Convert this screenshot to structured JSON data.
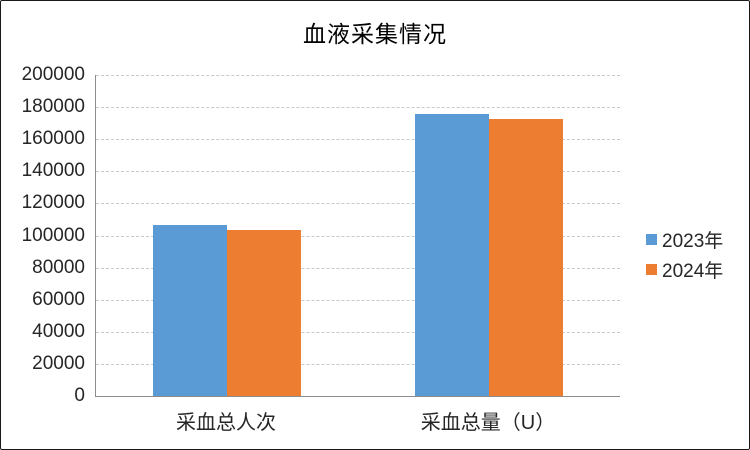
{
  "frame": {
    "background_color": "#FFFFFF",
    "border_color": "#1A1A1A"
  },
  "chart_data": {
    "type": "bar",
    "title": "血液采集情况",
    "categories": [
      "采血总人次",
      "采血总量（U）"
    ],
    "series": [
      {
        "name": "2023年",
        "color": "#5B9BD5",
        "values": [
          106500,
          175700
        ]
      },
      {
        "name": "2024年",
        "color": "#ED7D31",
        "values": [
          103400,
          172600
        ]
      }
    ],
    "ylim": [
      0,
      200000
    ],
    "ytick_step": 20000,
    "ytick_labels": [
      "0",
      "20000",
      "40000",
      "60000",
      "80000",
      "100000",
      "120000",
      "140000",
      "160000",
      "180000",
      "200000"
    ],
    "xlabel": "",
    "ylabel": "",
    "grid": "horizontal-dashed",
    "gridline_color": "#C9C9C9",
    "axis_line_color": "#8C8C8C",
    "text_color": "#262626",
    "legend_position": "right",
    "legend_marker": "square"
  }
}
